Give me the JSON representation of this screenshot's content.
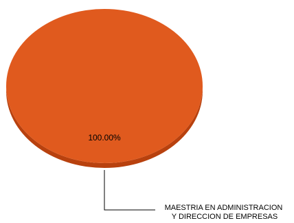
{
  "chart_data": {
    "type": "pie",
    "title": "",
    "slices": [
      {
        "label_lines": [
          "MAESTRIA EN ADMINISTRACION",
          "Y DIRECCION DE EMPRESAS"
        ],
        "value": 100,
        "percent_label": "100.00%",
        "color": "#E05A1E",
        "side_color": "#B8410E"
      }
    ],
    "style": {
      "three_d": true,
      "leader_color": "#000000"
    }
  }
}
